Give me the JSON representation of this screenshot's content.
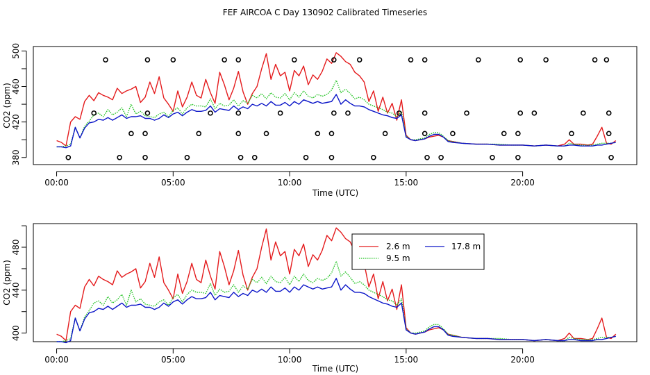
{
  "title": "FEF AIRCOA C  Day 130902  Calibrated Timeseries",
  "colors": {
    "s1": "#e41a1c",
    "s2": "#22c322",
    "s3": "#0a14c8",
    "axis": "#000000",
    "background": "#ffffff"
  },
  "chart_data": [
    {
      "type": "line+scatter",
      "title": "FEF AIRCOA C  Day 130902  Calibrated Timeseries",
      "xlabel": "Time (UTC)",
      "ylabel": "CO2 (ppm)",
      "xlim": [
        -1.0,
        24.9
      ],
      "ylim": [
        372,
        505
      ],
      "x_ticks": [
        0,
        5,
        10,
        15,
        20
      ],
      "x_tick_labels": [
        "00:00",
        "05:00",
        "10:00",
        "15:00",
        "20:00"
      ],
      "y_ticks": [
        380,
        420,
        460,
        500
      ],
      "y_minor_ticks": [
        400,
        440,
        480
      ],
      "y_tick_labels": [
        "380",
        "420",
        "460",
        "500"
      ],
      "series_ref": "shared_series",
      "circle_markers": {
        "name": "reference markers",
        "points": [
          [
            0.5,
            380
          ],
          [
            1.6,
            430
          ],
          [
            2.1,
            490
          ],
          [
            2.7,
            380
          ],
          [
            3.2,
            407
          ],
          [
            3.8,
            380
          ],
          [
            3.8,
            407
          ],
          [
            3.9,
            430
          ],
          [
            3.9,
            490
          ],
          [
            5.0,
            490
          ],
          [
            5.6,
            380
          ],
          [
            6.1,
            407
          ],
          [
            6.6,
            430
          ],
          [
            7.2,
            490
          ],
          [
            7.8,
            490
          ],
          [
            7.8,
            430
          ],
          [
            7.8,
            407
          ],
          [
            7.9,
            380
          ],
          [
            8.5,
            380
          ],
          [
            9.0,
            407
          ],
          [
            9.6,
            430
          ],
          [
            10.2,
            490
          ],
          [
            10.7,
            380
          ],
          [
            11.2,
            407
          ],
          [
            11.8,
            380
          ],
          [
            11.8,
            407
          ],
          [
            11.9,
            430
          ],
          [
            11.9,
            490
          ],
          [
            12.5,
            430
          ],
          [
            13.0,
            490
          ],
          [
            13.6,
            380
          ],
          [
            14.1,
            407
          ],
          [
            14.7,
            430
          ],
          [
            15.2,
            490
          ],
          [
            15.8,
            490
          ],
          [
            15.8,
            430
          ],
          [
            15.8,
            407
          ],
          [
            15.9,
            380
          ],
          [
            16.5,
            380
          ],
          [
            17.0,
            407
          ],
          [
            17.6,
            430
          ],
          [
            18.1,
            490
          ],
          [
            18.7,
            380
          ],
          [
            19.2,
            407
          ],
          [
            19.8,
            380
          ],
          [
            19.8,
            407
          ],
          [
            19.9,
            430
          ],
          [
            19.9,
            490
          ],
          [
            20.5,
            430
          ],
          [
            21.0,
            490
          ],
          [
            21.6,
            380
          ],
          [
            22.1,
            407
          ],
          [
            22.6,
            430
          ],
          [
            23.1,
            490
          ],
          [
            23.6,
            490
          ],
          [
            23.7,
            430
          ],
          [
            23.7,
            407
          ],
          [
            23.8,
            380
          ]
        ]
      }
    },
    {
      "type": "line",
      "title": "",
      "xlabel": "Time (UTC)",
      "ylabel": "CO2 (ppm)",
      "xlim": [
        -1.0,
        24.9
      ],
      "ylim": [
        392,
        502
      ],
      "x_ticks": [
        0,
        5,
        10,
        15,
        20
      ],
      "x_tick_labels": [
        "00:00",
        "05:00",
        "10:00",
        "15:00",
        "20:00"
      ],
      "y_ticks": [
        400,
        440,
        480
      ],
      "y_minor_ticks": [
        420,
        460,
        500
      ],
      "y_tick_labels": [
        "400",
        "440",
        "480"
      ],
      "series_ref": "shared_series",
      "legend": {
        "placement": "upper-middle",
        "entries": [
          {
            "label": "2.6 m",
            "color": "#e41a1c",
            "dash": "solid"
          },
          {
            "label": "9.5 m",
            "color": "#22c322",
            "dash": "dotted"
          },
          {
            "label": "17.8 m",
            "color": "#0a14c8",
            "dash": "solid"
          }
        ]
      }
    }
  ],
  "shared_series": {
    "x": [
      0.0,
      0.2,
      0.4,
      0.6,
      0.8,
      1.0,
      1.2,
      1.4,
      1.6,
      1.8,
      2.0,
      2.2,
      2.4,
      2.6,
      2.8,
      3.0,
      3.2,
      3.4,
      3.6,
      3.8,
      4.0,
      4.2,
      4.4,
      4.6,
      4.8,
      5.0,
      5.2,
      5.4,
      5.6,
      5.8,
      6.0,
      6.2,
      6.4,
      6.6,
      6.8,
      7.0,
      7.2,
      7.4,
      7.6,
      7.8,
      8.0,
      8.2,
      8.4,
      8.6,
      8.8,
      9.0,
      9.2,
      9.4,
      9.6,
      9.8,
      10.0,
      10.2,
      10.4,
      10.6,
      10.8,
      11.0,
      11.2,
      11.4,
      11.6,
      11.8,
      12.0,
      12.2,
      12.4,
      12.6,
      12.8,
      13.0,
      13.2,
      13.4,
      13.6,
      13.8,
      14.0,
      14.2,
      14.4,
      14.6,
      14.8,
      15.0,
      15.2,
      15.4,
      15.6,
      15.8,
      16.0,
      16.2,
      16.4,
      16.6,
      16.8,
      17.0,
      17.4,
      18.0,
      18.5,
      19.0,
      19.5,
      20.0,
      20.5,
      21.0,
      21.5,
      21.8,
      22.0,
      22.2,
      22.5,
      22.8,
      23.0,
      23.2,
      23.4,
      23.6,
      23.8,
      24.0
    ],
    "series": [
      {
        "name": "2.6 m",
        "color": "#e41a1c",
        "values": [
          399,
          397,
          393,
          420,
          426,
          423,
          443,
          450,
          444,
          453,
          450,
          448,
          445,
          458,
          452,
          455,
          457,
          460,
          442,
          448,
          465,
          452,
          471,
          447,
          440,
          432,
          455,
          437,
          448,
          465,
          450,
          447,
          468,
          453,
          441,
          476,
          462,
          445,
          458,
          477,
          454,
          440,
          452,
          460,
          480,
          497,
          468,
          485,
          472,
          476,
          455,
          478,
          472,
          483,
          462,
          473,
          468,
          477,
          491,
          486,
          498,
          494,
          488,
          485,
          476,
          472,
          465,
          443,
          455,
          432,
          448,
          430,
          441,
          422,
          445,
          405,
          400,
          399,
          400,
          401,
          403,
          404,
          405,
          403,
          399,
          398,
          396,
          395,
          395,
          394,
          394,
          394,
          393,
          394,
          393,
          395,
          400,
          395,
          395,
          394,
          395,
          404,
          414,
          396,
          395,
          399
        ]
      },
      {
        "name": "9.5 m",
        "color": "#22c322",
        "values": [
          392,
          392,
          393,
          395,
          414,
          402,
          415,
          421,
          428,
          430,
          426,
          434,
          428,
          431,
          436,
          426,
          440,
          429,
          432,
          427,
          426,
          425,
          429,
          431,
          426,
          433,
          436,
          429,
          436,
          440,
          438,
          438,
          437,
          446,
          435,
          441,
          438,
          439,
          445,
          438,
          444,
          441,
          450,
          447,
          452,
          446,
          453,
          448,
          447,
          452,
          445,
          453,
          448,
          455,
          449,
          447,
          451,
          449,
          451,
          456,
          467,
          453,
          457,
          452,
          446,
          448,
          445,
          440,
          438,
          436,
          434,
          431,
          430,
          426,
          432,
          404,
          400,
          400,
          401,
          402,
          406,
          408,
          408,
          404,
          399,
          398,
          396,
          395,
          395,
          395,
          394,
          394,
          393,
          394,
          393,
          393,
          396,
          395,
          394,
          394,
          394,
          395,
          396,
          396,
          396,
          397
        ]
      },
      {
        "name": "17.8 m",
        "color": "#0a14c8",
        "values": [
          392,
          392,
          391,
          393,
          414,
          402,
          413,
          419,
          420,
          423,
          422,
          425,
          422,
          425,
          428,
          424,
          426,
          426,
          427,
          424,
          424,
          422,
          424,
          428,
          425,
          429,
          431,
          427,
          431,
          434,
          432,
          432,
          433,
          438,
          431,
          435,
          434,
          433,
          438,
          434,
          437,
          435,
          440,
          438,
          441,
          438,
          443,
          439,
          439,
          442,
          438,
          443,
          440,
          445,
          443,
          441,
          443,
          441,
          442,
          443,
          451,
          440,
          445,
          441,
          438,
          438,
          437,
          434,
          432,
          430,
          428,
          427,
          425,
          424,
          428,
          403,
          400,
          399,
          400,
          401,
          404,
          406,
          406,
          403,
          398,
          397,
          396,
          395,
          395,
          394,
          394,
          394,
          393,
          394,
          393,
          393,
          394,
          394,
          393,
          393,
          393,
          394,
          394,
          395,
          396,
          397
        ]
      }
    ]
  }
}
